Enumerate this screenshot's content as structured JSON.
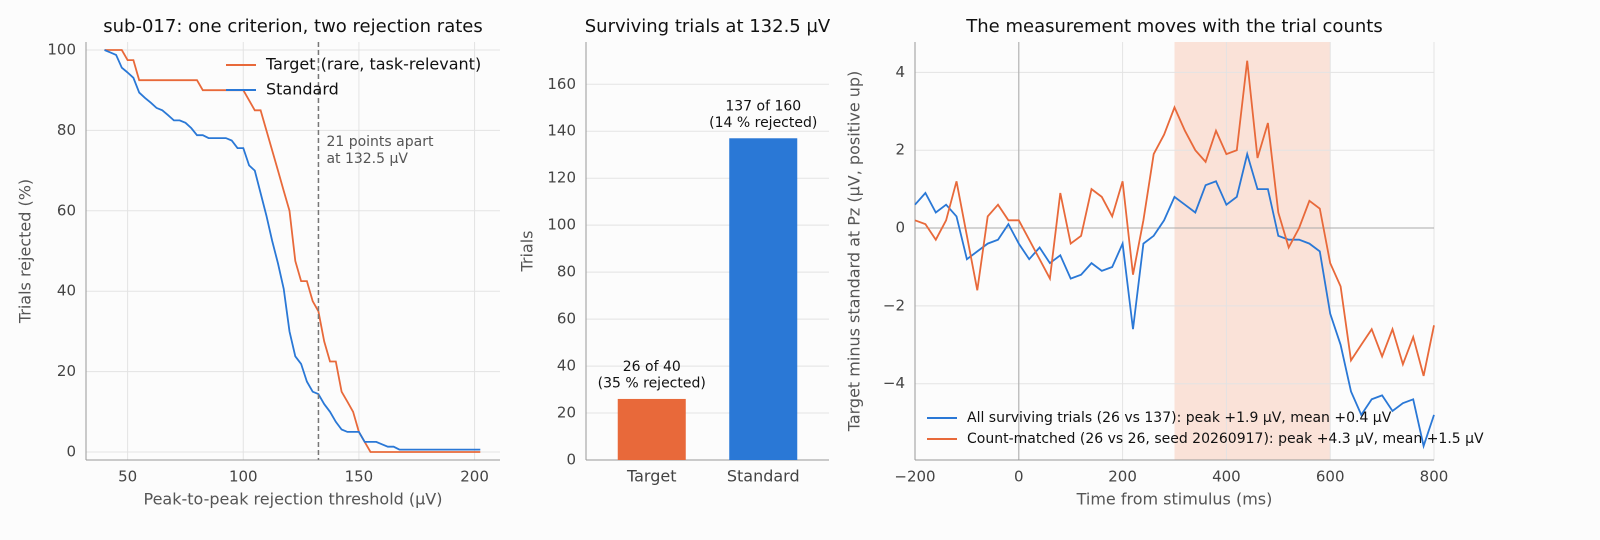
{
  "chart_data": [
    {
      "type": "line",
      "title": "sub-017: one criterion, two rejection rates",
      "x_label": "Peak-to-peak rejection threshold (µV)",
      "y_label": "Trials rejected (%)",
      "x": [
        40,
        42.5,
        45,
        47.5,
        50,
        52.5,
        55,
        57.5,
        60,
        62.5,
        65,
        67.5,
        70,
        72.5,
        75,
        77.5,
        80,
        82.5,
        85,
        87.5,
        90,
        92.5,
        95,
        97.5,
        100,
        102.5,
        105,
        107.5,
        110,
        112.5,
        115,
        117.5,
        120,
        122.5,
        125,
        127.5,
        130,
        132.5,
        135,
        137.5,
        140,
        142.5,
        145,
        147.5,
        150,
        152.5,
        155,
        157.5,
        160,
        162.5,
        165,
        167.5,
        170,
        172.5,
        175,
        177.5,
        180,
        182.5,
        185,
        187.5,
        190,
        192.5,
        195,
        197.5,
        200,
        202.5
      ],
      "series": [
        {
          "name": "Target (rare, task-relevant)",
          "color": "#e8693a",
          "values": [
            100,
            100,
            100,
            100,
            97.5,
            97.5,
            92.5,
            92.5,
            92.5,
            92.5,
            92.5,
            92.5,
            92.5,
            92.5,
            92.5,
            92.5,
            92.5,
            90,
            90,
            90,
            90,
            90,
            90,
            90,
            90,
            87.5,
            85,
            85,
            80,
            75,
            70,
            65,
            60,
            47.5,
            42.5,
            42.5,
            37.5,
            35,
            27.5,
            22.5,
            22.5,
            15,
            12.5,
            10,
            5,
            2.5,
            0,
            0,
            0,
            0,
            0,
            0,
            0,
            0,
            0,
            0,
            0,
            0,
            0,
            0,
            0,
            0,
            0,
            0,
            0,
            0
          ]
        },
        {
          "name": "Standard",
          "color": "#2a78d6",
          "values": [
            100,
            99.4,
            98.8,
            95.6,
            94.4,
            93.1,
            89.4,
            88.1,
            86.9,
            85.6,
            85,
            83.8,
            82.5,
            82.5,
            81.9,
            80.6,
            78.8,
            78.8,
            78.1,
            78.1,
            78.1,
            78.1,
            77.5,
            75.6,
            75.6,
            71.3,
            70,
            64.4,
            58.8,
            52.5,
            46.9,
            40.6,
            30,
            23.8,
            21.9,
            17.5,
            15,
            14.4,
            11.9,
            10,
            7.5,
            5.6,
            5,
            5,
            5,
            2.5,
            2.5,
            2.5,
            1.9,
            1.3,
            1.3,
            0.6,
            0.6,
            0.6,
            0.6,
            0.6,
            0.6,
            0.6,
            0.6,
            0.6,
            0.6,
            0.6,
            0.6,
            0.6,
            0.6,
            0.6
          ]
        }
      ],
      "xlim": [
        32,
        211
      ],
      "xticks": [
        50,
        100,
        150,
        200
      ],
      "ylim": [
        -2,
        102
      ],
      "yticks": [
        0,
        20,
        40,
        60,
        80,
        100
      ],
      "grid": true,
      "legend": "upper right",
      "threshold": 132.5,
      "annotation": [
        "21 points apart",
        "at 132.5 µV"
      ]
    },
    {
      "type": "bar",
      "title": "Surviving trials at 132.5 µV",
      "y_label": "Trials",
      "categories": [
        "Target",
        "Standard"
      ],
      "values": [
        26,
        137
      ],
      "value_labels": [
        "26 of 40\n(35 % rejected)",
        "137 of 160\n(14 % rejected)"
      ],
      "colors": [
        "#e8693a",
        "#2a78d6"
      ],
      "ylim": [
        0,
        178
      ],
      "yticks": [
        0,
        20,
        40,
        60,
        80,
        100,
        120,
        140,
        160
      ],
      "grid": true
    },
    {
      "type": "line",
      "title": "The measurement moves with the trial counts",
      "x_label": "Time from stimulus (ms)",
      "y_label": "Target minus standard at Pz (µV, positive up)",
      "x": [
        -200,
        -180,
        -160,
        -140,
        -120,
        -100,
        -80,
        -60,
        -40,
        -20,
        0,
        20,
        40,
        60,
        80,
        100,
        120,
        140,
        160,
        180,
        200,
        220,
        240,
        260,
        280,
        300,
        320,
        340,
        360,
        380,
        400,
        420,
        440,
        460,
        480,
        500,
        520,
        540,
        560,
        580,
        600,
        620,
        640,
        660,
        680,
        700,
        720,
        740,
        760,
        780,
        800
      ],
      "series": [
        {
          "name": "All surviving trials (26 vs 137): peak +1.9 µV, mean +0.4 µV",
          "color": "#2a78d6",
          "values": [
            0.6,
            0.9,
            0.4,
            0.6,
            0.3,
            -0.8,
            -0.6,
            -0.4,
            -0.3,
            0.1,
            -0.4,
            -0.8,
            -0.5,
            -0.9,
            -0.7,
            -1.3,
            -1.2,
            -0.9,
            -1.1,
            -1.0,
            -0.4,
            -2.6,
            -0.4,
            -0.2,
            0.2,
            0.8,
            0.6,
            0.4,
            1.1,
            1.2,
            0.6,
            0.8,
            1.9,
            1.0,
            1.0,
            -0.2,
            -0.3,
            -0.3,
            -0.4,
            -0.6,
            -2.2,
            -3.0,
            -4.2,
            -4.8,
            -4.4,
            -4.3,
            -4.7,
            -4.5,
            -4.4,
            -5.6,
            -4.8
          ]
        },
        {
          "name": "Count-matched (26 vs 26, seed 20260917): peak +4.3 µV, mean +1.5 µV",
          "color": "#e8693a",
          "values": [
            0.2,
            0.1,
            -0.3,
            0.2,
            1.2,
            -0.2,
            -1.6,
            0.3,
            0.6,
            0.2,
            0.2,
            -0.3,
            -0.8,
            -1.3,
            0.9,
            -0.4,
            -0.2,
            1.0,
            0.8,
            0.3,
            1.2,
            -1.2,
            0.2,
            1.9,
            2.4,
            3.1,
            2.5,
            2.0,
            1.7,
            2.5,
            1.9,
            2.0,
            4.3,
            1.8,
            2.7,
            0.4,
            -0.5,
            0.0,
            0.7,
            0.5,
            -0.9,
            -1.5,
            -3.4,
            -3.0,
            -2.6,
            -3.3,
            -2.6,
            -3.5,
            -2.8,
            -3.8,
            -2.5
          ]
        }
      ],
      "xlim": [
        -200,
        800
      ],
      "xticks": [
        {
          "value": -200,
          "label": "−200"
        },
        0,
        200,
        400,
        600,
        800
      ],
      "ylim": [
        -5.96,
        4.78
      ],
      "yticks": [
        {
          "value": -4,
          "label": "−4"
        },
        {
          "value": -2,
          "label": "−2"
        },
        0,
        2,
        4
      ],
      "grid": true,
      "legend": "lower left",
      "highlight_span": [
        300,
        600
      ],
      "zero_lines": true
    }
  ]
}
